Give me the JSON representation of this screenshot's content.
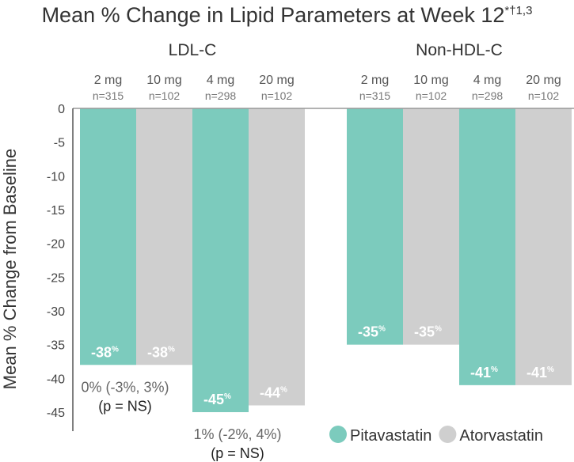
{
  "chart_data": {
    "type": "bar",
    "title": "Mean % Change in Lipid Parameters at Week 12",
    "title_superscript": "*†1,3",
    "ylabel": "Mean % Change from Baseline",
    "ylim": [
      -47.5,
      0
    ],
    "yticks": [
      0,
      -5,
      -10,
      -15,
      -20,
      -25,
      -30,
      -35,
      -40,
      -45
    ],
    "grid": false,
    "legend_position": "bottom-right",
    "colors": {
      "Pitavastatin": "#7ccbbd",
      "Atorvastatin": "#cfcfcf"
    },
    "legend": [
      {
        "name": "Pitavastatin",
        "color": "#7ccbbd"
      },
      {
        "name": "Atorvastatin",
        "color": "#cfcfcf"
      }
    ],
    "groups": [
      {
        "name": "LDL-C",
        "bars": [
          {
            "dose": "2 mg",
            "n": "n=315",
            "drug": "Pitavastatin",
            "value": -38,
            "label": "-38"
          },
          {
            "dose": "10 mg",
            "n": "n=102",
            "drug": "Atorvastatin",
            "value": -38,
            "label": "-38"
          },
          {
            "dose": "4 mg",
            "n": "n=298",
            "drug": "Pitavastatin",
            "value": -45,
            "label": "-45"
          },
          {
            "dose": "20 mg",
            "n": "n=102",
            "drug": "Atorvastatin",
            "value": -44,
            "label": "-44"
          }
        ],
        "annotations": [
          {
            "line1": "0% (-3%, 3%)",
            "line2": "(p = NS)"
          },
          {
            "line1": "1% (-2%, 4%)",
            "line2": "(p = NS)"
          }
        ]
      },
      {
        "name": "Non-HDL-C",
        "bars": [
          {
            "dose": "2 mg",
            "n": "n=315",
            "drug": "Pitavastatin",
            "value": -35,
            "label": "-35"
          },
          {
            "dose": "10 mg",
            "n": "n=102",
            "drug": "Atorvastatin",
            "value": -35,
            "label": "-35"
          },
          {
            "dose": "4 mg",
            "n": "n=298",
            "drug": "Pitavastatin",
            "value": -41,
            "label": "-41"
          },
          {
            "dose": "20 mg",
            "n": "n=102",
            "drug": "Atorvastatin",
            "value": -41,
            "label": "-41"
          }
        ],
        "annotations": []
      }
    ],
    "percent_symbol": "%"
  }
}
